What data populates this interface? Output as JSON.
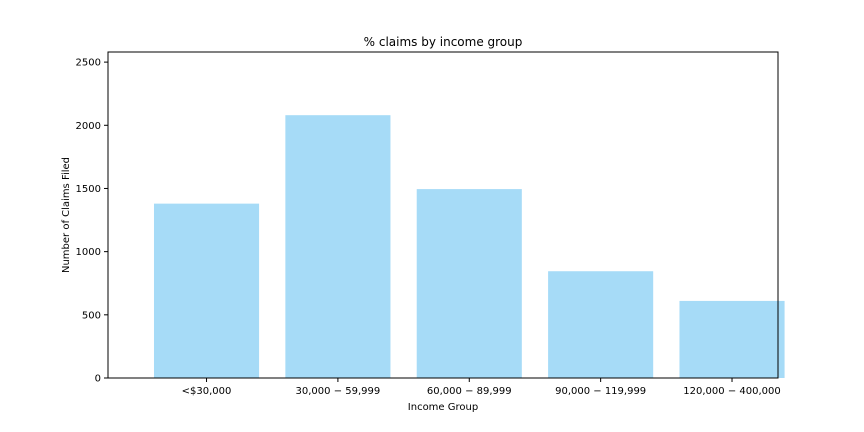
{
  "chart_data": {
    "type": "bar",
    "title": "% claims by income group",
    "xlabel": "Income Group",
    "ylabel": "Number of Claims Filed",
    "categories": [
      "<$30,000",
      "30,000 − 59,999",
      "60,000 − 89,999",
      "90,000 − 119,999",
      "120,000 − 400,000"
    ],
    "values": [
      1380,
      2080,
      1495,
      845,
      610
    ],
    "ylim": [
      0,
      2580
    ],
    "yticks": [
      0,
      500,
      1000,
      1500,
      2000,
      2500
    ],
    "ytick_labels": [
      "0",
      "500",
      "1000",
      "1500",
      "2000",
      "2500"
    ],
    "bar_color": "#a6dbf7",
    "grid": false,
    "legend": "none"
  }
}
